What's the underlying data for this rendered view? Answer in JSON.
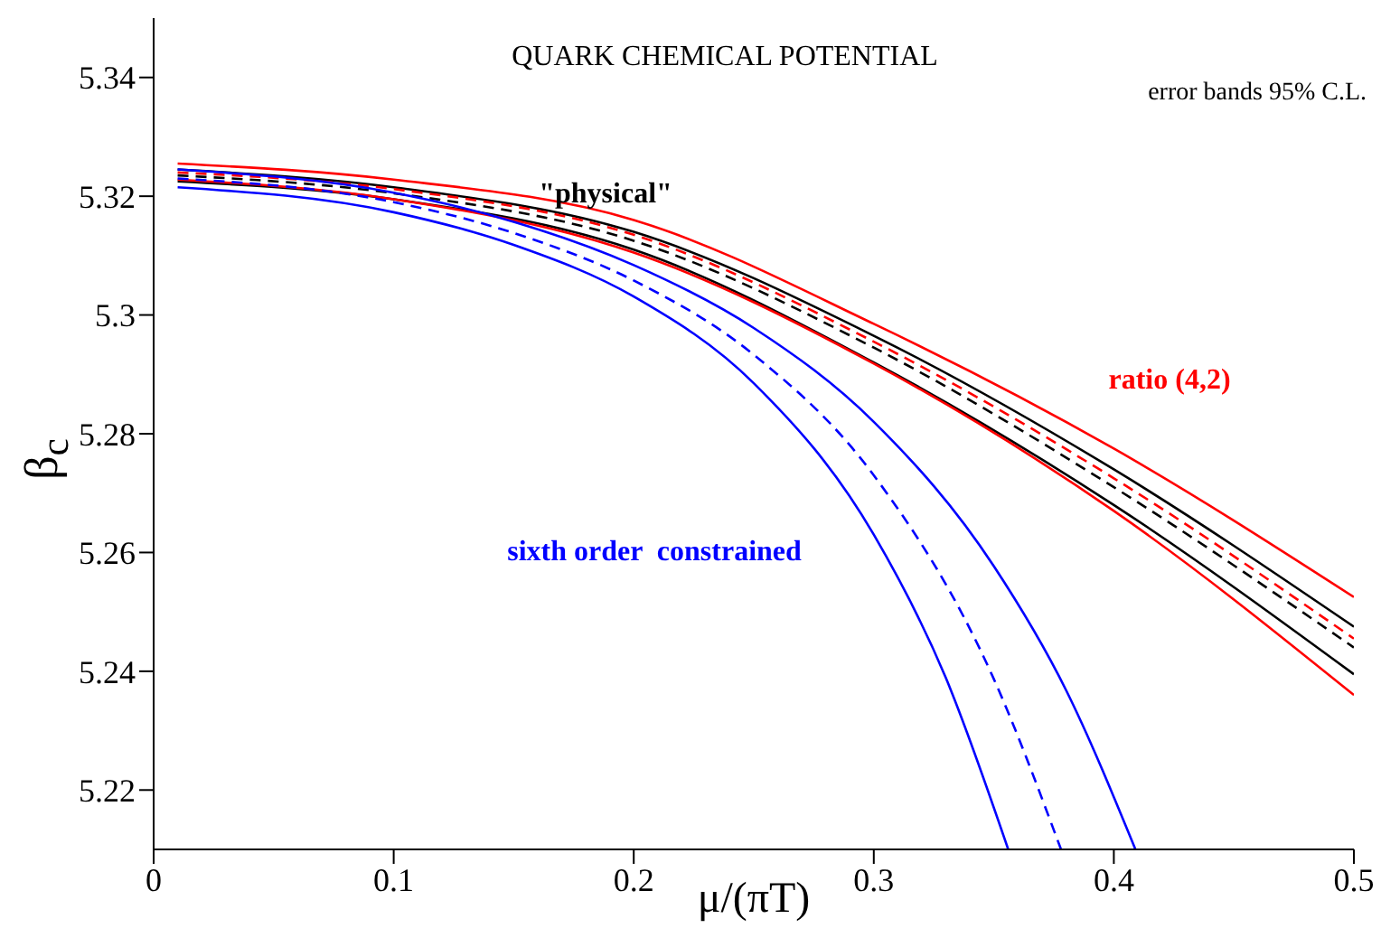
{
  "chart_data": {
    "type": "line",
    "title": "QUARK CHEMICAL POTENTIAL",
    "xlabel": "μ/(πT)",
    "ylabel": "β$_{c}$",
    "xlim": [
      0,
      0.5
    ],
    "ylim": [
      5.21,
      5.35
    ],
    "xticks": [
      0,
      0.1,
      0.2,
      0.3,
      0.4,
      0.5
    ],
    "yticks": [
      5.22,
      5.24,
      5.26,
      5.28,
      5.3,
      5.32,
      5.34
    ],
    "marker": "none",
    "annotations": [
      "error bands 95% C.L."
    ],
    "series": [
      {
        "name": "\"physical\"",
        "color": "#000000",
        "line_style": "dashed",
        "x": [
          0.01,
          0.1,
          0.2,
          0.3,
          0.4,
          0.5
        ],
        "values": [
          5.3235,
          5.3205,
          5.3125,
          5.2945,
          5.271,
          5.244
        ]
      },
      {
        "color": "#000000",
        "line_style": "solid",
        "x": [
          0.01,
          0.1,
          0.2,
          0.3,
          0.4,
          0.5
        ],
        "values": [
          5.3245,
          5.3215,
          5.314,
          5.2965,
          5.274,
          5.2475
        ]
      },
      {
        "color": "#000000",
        "line_style": "solid",
        "x": [
          0.01,
          0.1,
          0.2,
          0.3,
          0.4,
          0.5
        ],
        "values": [
          5.3225,
          5.3195,
          5.311,
          5.292,
          5.268,
          5.2395
        ]
      },
      {
        "name": "ratio (4,2)",
        "color": "#ff0000",
        "line_style": "dashed",
        "x": [
          0.01,
          0.1,
          0.2,
          0.3,
          0.4,
          0.5
        ],
        "values": [
          5.324,
          5.3212,
          5.3135,
          5.2955,
          5.2725,
          5.2455
        ]
      },
      {
        "color": "#ff0000",
        "line_style": "solid",
        "x": [
          0.01,
          0.1,
          0.2,
          0.3,
          0.4,
          0.5
        ],
        "values": [
          5.3255,
          5.3228,
          5.316,
          5.2985,
          5.2775,
          5.2525
        ]
      },
      {
        "color": "#ff0000",
        "line_style": "solid",
        "x": [
          0.01,
          0.1,
          0.2,
          0.3,
          0.4,
          0.5
        ],
        "values": [
          5.3228,
          5.3195,
          5.3105,
          5.2918,
          5.267,
          5.236
        ]
      },
      {
        "name": "sixth order  constrained",
        "color": "#0000ff",
        "line_style": "dashed",
        "x": [
          0.01,
          0.1,
          0.15,
          0.2,
          0.25,
          0.3,
          0.35,
          0.378
        ],
        "values": [
          5.323,
          5.319,
          5.3138,
          5.3058,
          5.2933,
          5.273,
          5.2387,
          5.21
        ]
      },
      {
        "color": "#0000ff",
        "line_style": "solid",
        "x": [
          0.01,
          0.1,
          0.15,
          0.2,
          0.25,
          0.3,
          0.35,
          0.38,
          0.409
        ],
        "values": [
          5.3245,
          5.3206,
          5.3157,
          5.3084,
          5.2978,
          5.282,
          5.2577,
          5.2369,
          5.21
        ]
      },
      {
        "color": "#0000ff",
        "line_style": "solid",
        "x": [
          0.01,
          0.1,
          0.15,
          0.2,
          0.25,
          0.3,
          0.33,
          0.356
        ],
        "values": [
          5.3215,
          5.3173,
          5.3118,
          5.3031,
          5.2885,
          5.263,
          5.2389,
          5.21
        ]
      }
    ]
  }
}
